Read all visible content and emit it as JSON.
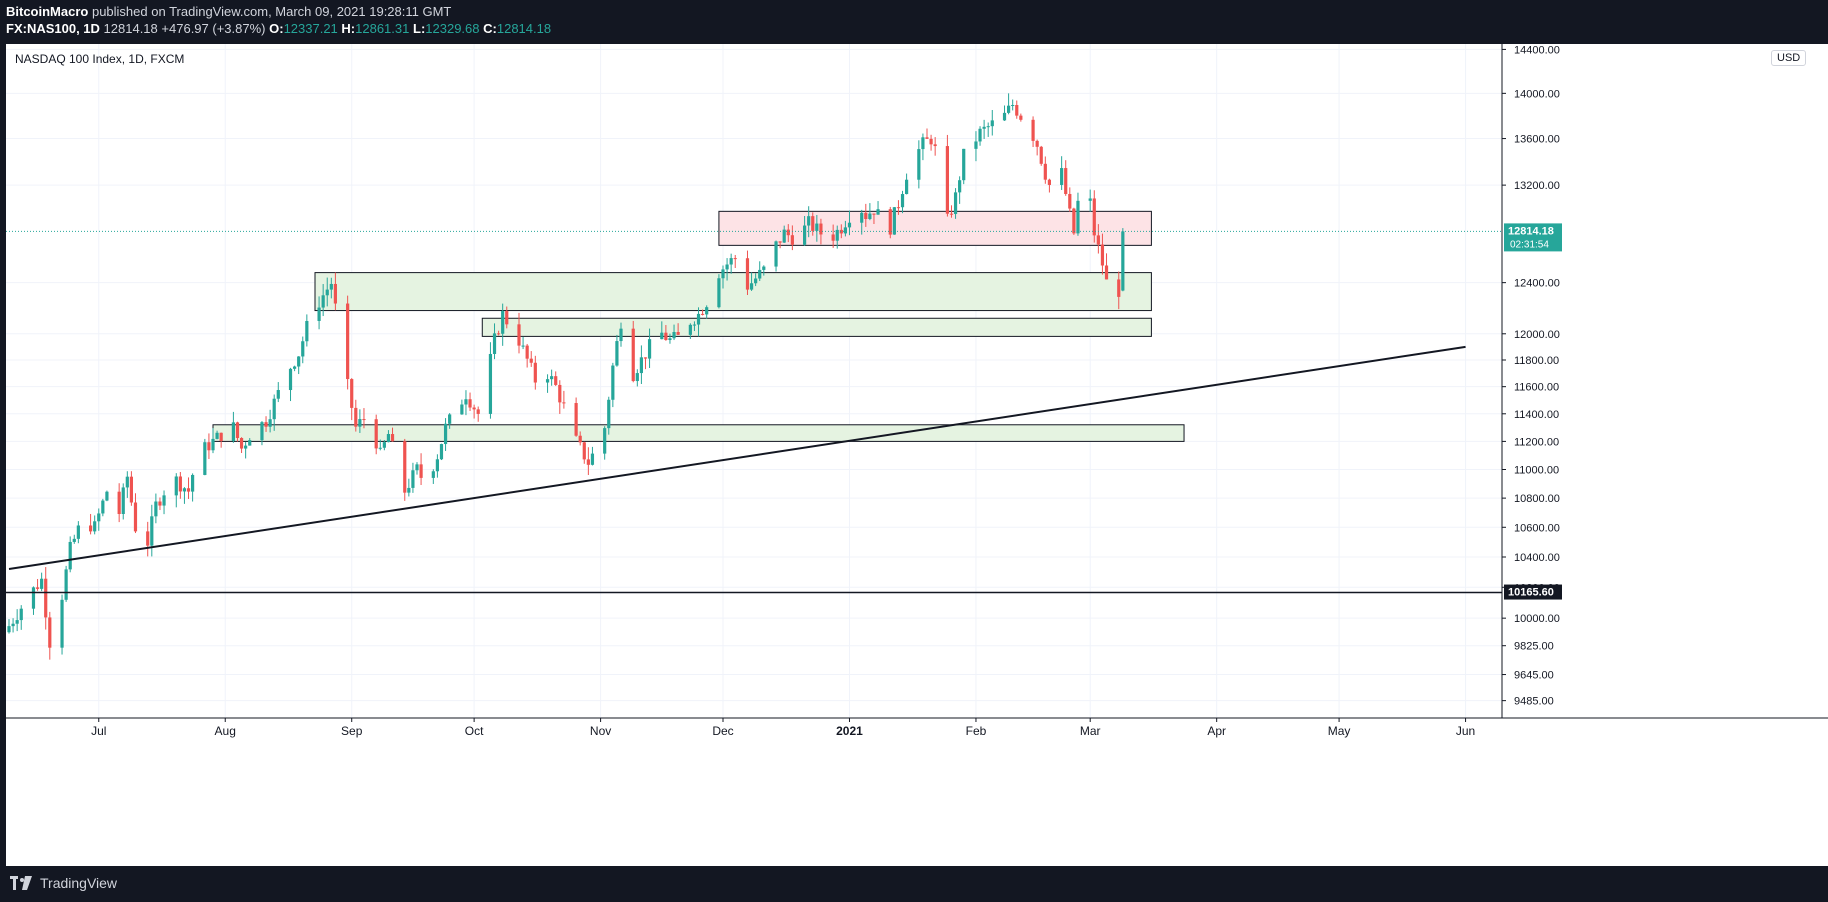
{
  "header": {
    "author": "BitcoinMacro",
    "published_text": "published on TradingView.com, March 09, 2021 19:28:11 GMT",
    "symbol_line": "FX:NAS100, 1D",
    "last": "12814.18",
    "change": "+476.97 (+3.87%)",
    "o_label": "O:",
    "o": "12337.21",
    "h_label": "H:",
    "h": "12861.31",
    "l_label": "L:",
    "l": "12329.68",
    "c_label": "C:",
    "c": "12814.18"
  },
  "footer": {
    "brand": "TradingView"
  },
  "colors": {
    "up": "#26a69a",
    "down": "#ef5350",
    "support_fill": "#e5f3e1",
    "resistance_fill": "#fde3e6",
    "axis_text": "#131722"
  },
  "chart_data": {
    "type": "candlestick",
    "title": "NASDAQ 100 Index, 1D, FXCM",
    "currency": "USD",
    "y_scale": "log",
    "ylim": [
      9380,
      14450
    ],
    "y_ticks": [
      "14400.00",
      "14000.00",
      "13600.00",
      "13200.00",
      "12400.00",
      "12000.00",
      "11800.00",
      "11600.00",
      "11400.00",
      "11200.00",
      "11000.00",
      "10800.00",
      "10600.00",
      "10400.00",
      "10200.00",
      "10000.00",
      "9825.00",
      "9645.00",
      "9485.00"
    ],
    "x_ticks": [
      {
        "label": "Jul",
        "day": 22
      },
      {
        "label": "Aug",
        "day": 53
      },
      {
        "label": "Sep",
        "day": 84
      },
      {
        "label": "Oct",
        "day": 114
      },
      {
        "label": "Nov",
        "day": 145
      },
      {
        "label": "Dec",
        "day": 175
      },
      {
        "label": "2021",
        "day": 206
      },
      {
        "label": "Feb",
        "day": 237
      },
      {
        "label": "Mar",
        "day": 265
      },
      {
        "label": "Apr",
        "day": 296
      },
      {
        "label": "May",
        "day": 326
      },
      {
        "label": "Jun",
        "day": 357
      }
    ],
    "last_price": {
      "value": 12814.18,
      "label": "12814.18",
      "countdown": "02:31:54"
    },
    "horizontal_line": {
      "value": 10165.6,
      "label": "10165.60"
    },
    "trendline": {
      "day1": 0,
      "price1": 10320,
      "day2": 357,
      "price2": 11900
    },
    "zones": [
      {
        "kind": "resistance",
        "day_start": 174,
        "day_end": 280,
        "top": 12980,
        "bottom": 12700
      },
      {
        "kind": "support",
        "day_start": 75,
        "day_end": 280,
        "top": 12480,
        "bottom": 12180
      },
      {
        "kind": "support",
        "day_start": 116,
        "day_end": 280,
        "top": 12120,
        "bottom": 11980
      },
      {
        "kind": "support",
        "day_start": 50,
        "day_end": 288,
        "top": 11320,
        "bottom": 11200
      }
    ],
    "anchors": [
      [
        0,
        9950
      ],
      [
        5,
        10150
      ],
      [
        8,
        10250
      ],
      [
        10,
        9850
      ],
      [
        12,
        10000
      ],
      [
        15,
        10450
      ],
      [
        18,
        10650
      ],
      [
        21,
        10600
      ],
      [
        24,
        10850
      ],
      [
        27,
        10700
      ],
      [
        29,
        10950
      ],
      [
        31,
        10600
      ],
      [
        34,
        10500
      ],
      [
        36,
        10750
      ],
      [
        40,
        10950
      ],
      [
        44,
        10850
      ],
      [
        46,
        11080
      ],
      [
        48,
        11150
      ],
      [
        52,
        11250
      ],
      [
        55,
        11300
      ],
      [
        57,
        11150
      ],
      [
        59,
        11250
      ],
      [
        63,
        11350
      ],
      [
        66,
        11550
      ],
      [
        68,
        11700
      ],
      [
        71,
        11850
      ],
      [
        74,
        12150
      ],
      [
        77,
        12300
      ],
      [
        79,
        12400
      ],
      [
        80,
        12200
      ],
      [
        81,
        11800
      ],
      [
        83,
        11600
      ],
      [
        85,
        11300
      ],
      [
        88,
        11400
      ],
      [
        91,
        11100
      ],
      [
        93,
        11250
      ],
      [
        95,
        11050
      ],
      [
        97,
        10850
      ],
      [
        100,
        11000
      ],
      [
        102,
        10900
      ],
      [
        105,
        11100
      ],
      [
        107,
        11300
      ],
      [
        110,
        11450
      ],
      [
        112,
        11550
      ],
      [
        115,
        11400
      ],
      [
        117,
        11650
      ],
      [
        119,
        11950
      ],
      [
        121,
        12150
      ],
      [
        123,
        12050
      ],
      [
        125,
        11950
      ],
      [
        127,
        11800
      ],
      [
        129,
        11650
      ],
      [
        131,
        11750
      ],
      [
        134,
        11600
      ],
      [
        136,
        11450
      ],
      [
        138,
        11250
      ],
      [
        140,
        11150
      ],
      [
        142,
        11050
      ],
      [
        144,
        11150
      ],
      [
        146,
        11300
      ],
      [
        148,
        11750
      ],
      [
        150,
        12100
      ],
      [
        152,
        11900
      ],
      [
        153,
        11700
      ],
      [
        155,
        11800
      ],
      [
        157,
        11900
      ],
      [
        160,
        12000
      ],
      [
        162,
        11950
      ],
      [
        165,
        11980
      ],
      [
        167,
        12100
      ],
      [
        169,
        12150
      ],
      [
        171,
        12250
      ],
      [
        173,
        12450
      ],
      [
        176,
        12550
      ],
      [
        178,
        12600
      ],
      [
        179,
        12500
      ],
      [
        180,
        12350
      ],
      [
        182,
        12400
      ],
      [
        185,
        12500
      ],
      [
        188,
        12700
      ],
      [
        190,
        12800
      ],
      [
        193,
        12750
      ],
      [
        196,
        12880
      ],
      [
        199,
        12800
      ],
      [
        202,
        12780
      ],
      [
        204,
        12850
      ],
      [
        206,
        12950
      ],
      [
        208,
        13050
      ],
      [
        210,
        12950
      ],
      [
        212,
        13000
      ],
      [
        214,
        12900
      ],
      [
        216,
        12850
      ],
      [
        218,
        13050
      ],
      [
        220,
        13300
      ],
      [
        222,
        13450
      ],
      [
        224,
        13550
      ],
      [
        226,
        13600
      ],
      [
        228,
        13400
      ],
      [
        229,
        13050
      ],
      [
        230,
        12900
      ],
      [
        232,
        13100
      ],
      [
        234,
        13450
      ],
      [
        236,
        13550
      ],
      [
        238,
        13650
      ],
      [
        240,
        13700
      ],
      [
        242,
        13750
      ],
      [
        244,
        13800
      ],
      [
        246,
        13900
      ],
      [
        248,
        13800
      ],
      [
        250,
        13700
      ],
      [
        252,
        13550
      ],
      [
        254,
        13300
      ],
      [
        255,
        13200
      ],
      [
        256,
        13050
      ],
      [
        258,
        13300
      ],
      [
        260,
        12950
      ],
      [
        261,
        12800
      ],
      [
        263,
        13300
      ],
      [
        265,
        13050
      ],
      [
        266,
        12800
      ],
      [
        268,
        12550
      ],
      [
        269,
        12400
      ],
      [
        271,
        12500
      ],
      [
        272,
        12337
      ],
      [
        273,
        12814
      ]
    ]
  }
}
